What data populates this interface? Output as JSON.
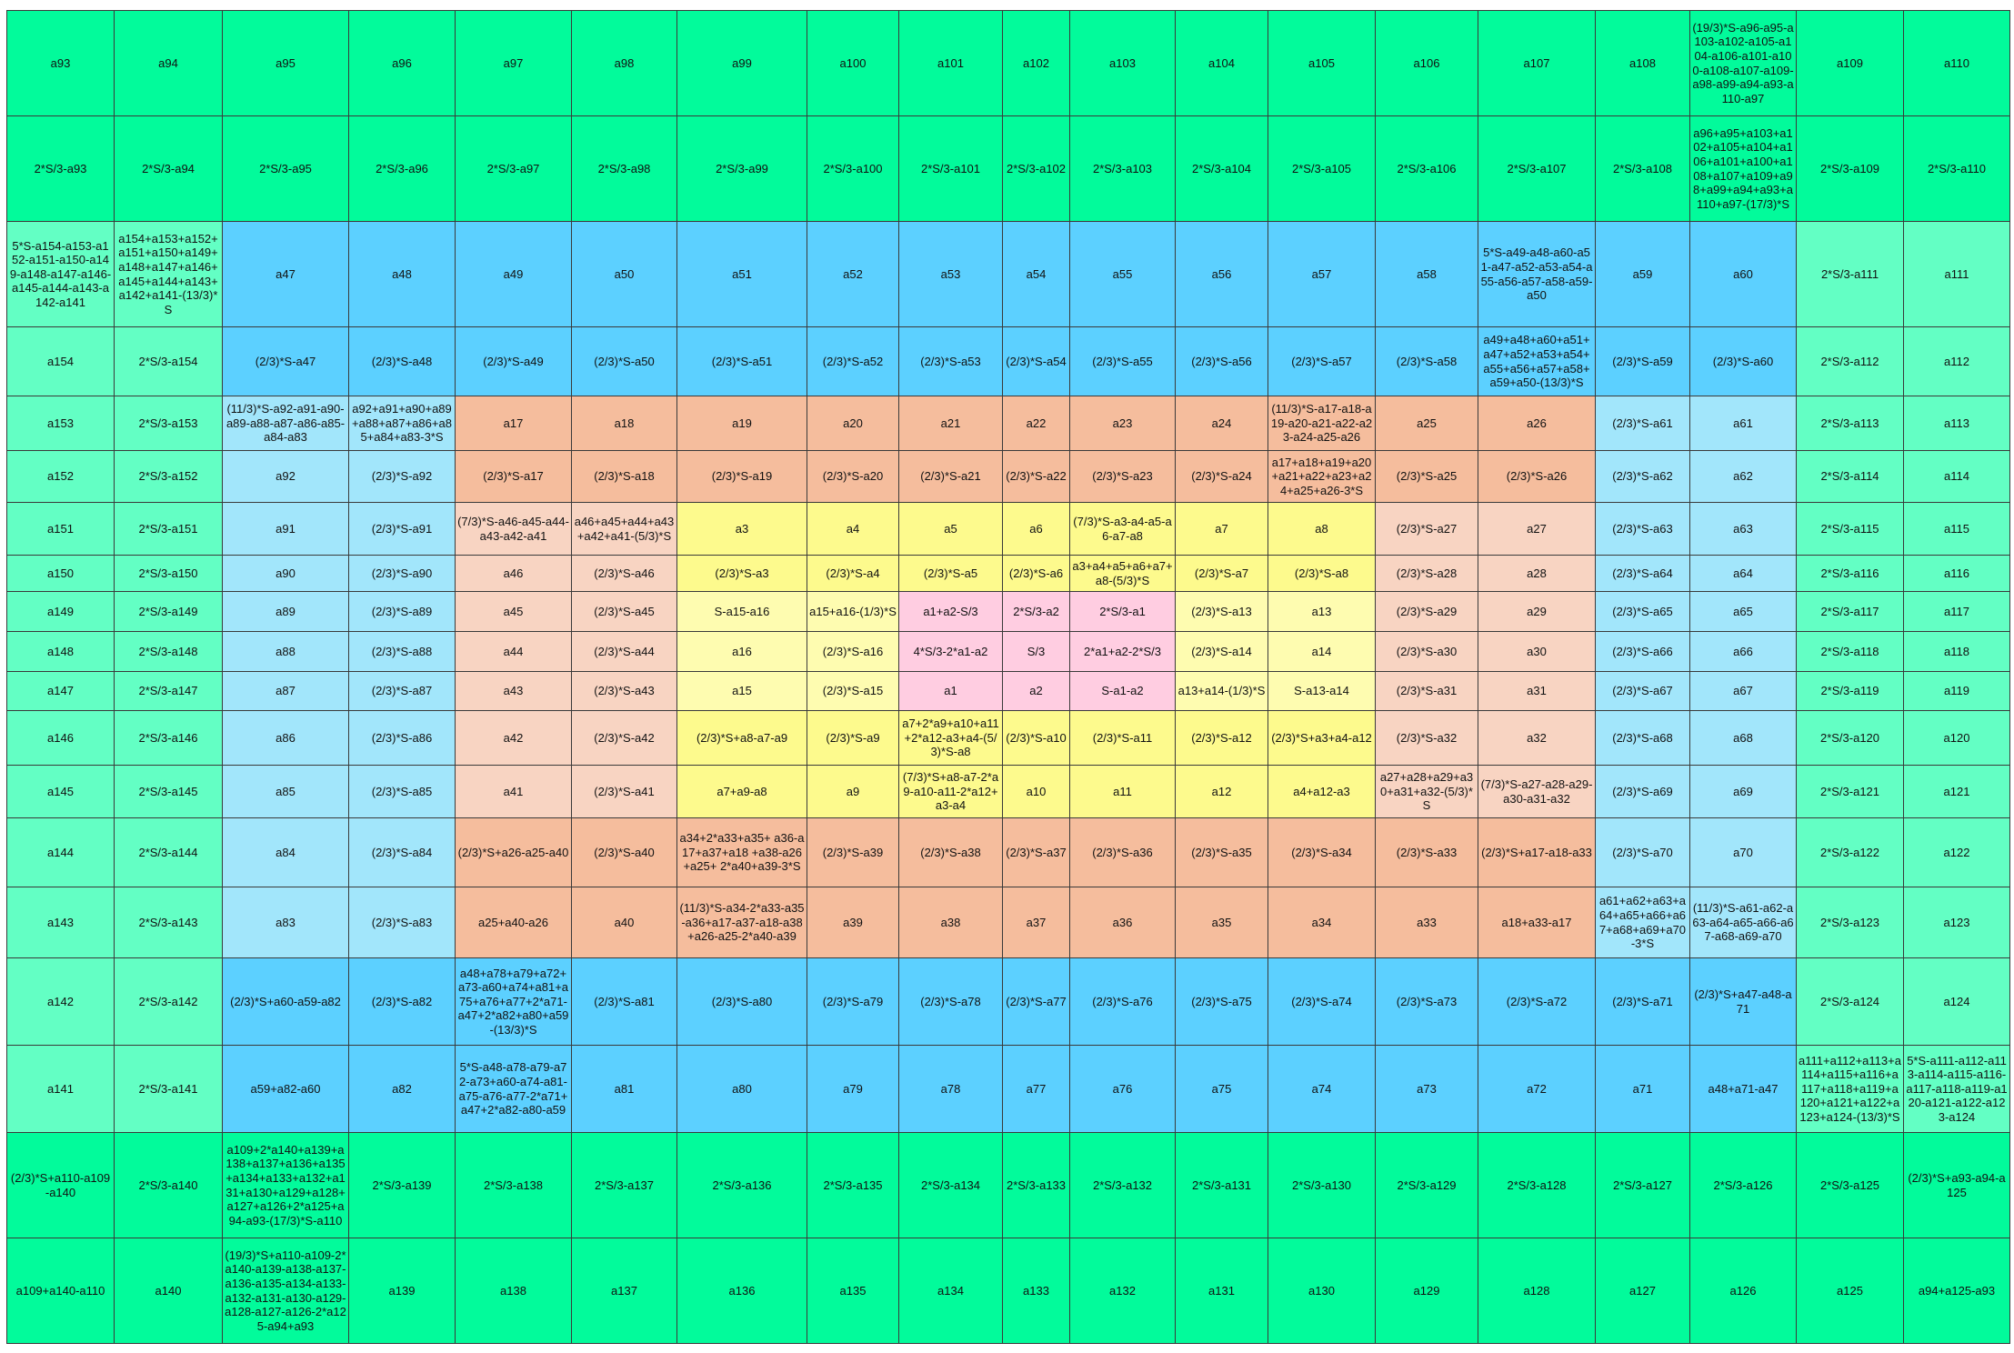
{
  "table": {
    "rows": [
      [
        "a93",
        "a94",
        "a95",
        "a96",
        "a97",
        "a98",
        "a99",
        "a100",
        "a101",
        "a102",
        "a103",
        "a104",
        "a105",
        "a106",
        "a107",
        "a108",
        "(19/3)*S-a96-a95-a103-a102-a105-a104-a106-a101-a100-a108-a107-a109-a98-a99-a94-a93-a110-a97",
        "a109",
        "a110"
      ],
      [
        "2*S/3-a93",
        "2*S/3-a94",
        "2*S/3-a95",
        "2*S/3-a96",
        "2*S/3-a97",
        "2*S/3-a98",
        "2*S/3-a99",
        "2*S/3-a100",
        "2*S/3-a101",
        "2*S/3-a102",
        "2*S/3-a103",
        "2*S/3-a104",
        "2*S/3-a105",
        "2*S/3-a106",
        "2*S/3-a107",
        "2*S/3-a108",
        "a96+a95+a103+a102+a105+a104+a106+a101+a100+a108+a107+a109+a98+a99+a94+a93+a110+a97-(17/3)*S",
        "2*S/3-a109",
        "2*S/3-a110"
      ],
      [
        "5*S-a154-a153-a152-a151-a150-a149-a148-a147-a146-a145-a144-a143-a142-a141",
        "a154+a153+a152+a151+a150+a149+a148+a147+a146+a145+a144+a143+a142+a141-(13/3)*S",
        "a47",
        "a48",
        "a49",
        "a50",
        "a51",
        "a52",
        "a53",
        "a54",
        "a55",
        "a56",
        "a57",
        "a58",
        "5*S-a49-a48-a60-a51-a47-a52-a53-a54-a55-a56-a57-a58-a59-a50",
        "a59",
        "a60",
        "2*S/3-a111",
        "a111"
      ],
      [
        "a154",
        "2*S/3-a154",
        "(2/3)*S-a47",
        "(2/3)*S-a48",
        "(2/3)*S-a49",
        "(2/3)*S-a50",
        "(2/3)*S-a51",
        "(2/3)*S-a52",
        "(2/3)*S-a53",
        "(2/3)*S-a54",
        "(2/3)*S-a55",
        "(2/3)*S-a56",
        "(2/3)*S-a57",
        "(2/3)*S-a58",
        "a49+a48+a60+a51+a47+a52+a53+a54+a55+a56+a57+a58+a59+a50-(13/3)*S",
        "(2/3)*S-a59",
        "(2/3)*S-a60",
        "2*S/3-a112",
        "a112"
      ],
      [
        "a153",
        "2*S/3-a153",
        "(11/3)*S-a92-a91-a90-a89-a88-a87-a86-a85-a84-a83",
        "a92+a91+a90+a89+a88+a87+a86+a85+a84+a83-3*S",
        "a17",
        "a18",
        "a19",
        "a20",
        "a21",
        "a22",
        "a23",
        "a24",
        "(11/3)*S-a17-a18-a19-a20-a21-a22-a23-a24-a25-a26",
        "a25",
        "a26",
        "(2/3)*S-a61",
        "a61",
        "2*S/3-a113",
        "a113"
      ],
      [
        "a152",
        "2*S/3-a152",
        "a92",
        "(2/3)*S-a92",
        "(2/3)*S-a17",
        "(2/3)*S-a18",
        "(2/3)*S-a19",
        "(2/3)*S-a20",
        "(2/3)*S-a21",
        "(2/3)*S-a22",
        "(2/3)*S-a23",
        "(2/3)*S-a24",
        "a17+a18+a19+a20+a21+a22+a23+a24+a25+a26-3*S",
        "(2/3)*S-a25",
        "(2/3)*S-a26",
        "(2/3)*S-a62",
        "a62",
        "2*S/3-a114",
        "a114"
      ],
      [
        "a151",
        "2*S/3-a151",
        "a91",
        "(2/3)*S-a91",
        "(7/3)*S-a46-a45-a44-a43-a42-a41",
        "a46+a45+a44+a43+a42+a41-(5/3)*S",
        "a3",
        "a4",
        "a5",
        "a6",
        "(7/3)*S-a3-a4-a5-a6-a7-a8",
        "a7",
        "a8",
        "(2/3)*S-a27",
        "a27",
        "(2/3)*S-a63",
        "a63",
        "2*S/3-a115",
        "a115"
      ],
      [
        "a150",
        "2*S/3-a150",
        "a90",
        "(2/3)*S-a90",
        "a46",
        "(2/3)*S-a46",
        "(2/3)*S-a3",
        "(2/3)*S-a4",
        "(2/3)*S-a5",
        "(2/3)*S-a6",
        "a3+a4+a5+a6+a7+a8-(5/3)*S",
        "(2/3)*S-a7",
        "(2/3)*S-a8",
        "(2/3)*S-a28",
        "a28",
        "(2/3)*S-a64",
        "a64",
        "2*S/3-a116",
        "a116"
      ],
      [
        "a149",
        "2*S/3-a149",
        "a89",
        "(2/3)*S-a89",
        "a45",
        "(2/3)*S-a45",
        "S-a15-a16",
        "a15+a16-(1/3)*S",
        "a1+a2-S/3",
        "2*S/3-a2",
        "2*S/3-a1",
        "(2/3)*S-a13",
        "a13",
        "(2/3)*S-a29",
        "a29",
        "(2/3)*S-a65",
        "a65",
        "2*S/3-a117",
        "a117"
      ],
      [
        "a148",
        "2*S/3-a148",
        "a88",
        "(2/3)*S-a88",
        "a44",
        "(2/3)*S-a44",
        "a16",
        "(2/3)*S-a16",
        "4*S/3-2*a1-a2",
        "S/3",
        "2*a1+a2-2*S/3",
        "(2/3)*S-a14",
        "a14",
        "(2/3)*S-a30",
        "a30",
        "(2/3)*S-a66",
        "a66",
        "2*S/3-a118",
        "a118"
      ],
      [
        "a147",
        "2*S/3-a147",
        "a87",
        "(2/3)*S-a87",
        "a43",
        "(2/3)*S-a43",
        "a15",
        "(2/3)*S-a15",
        "a1",
        "a2",
        "S-a1-a2",
        "a13+a14-(1/3)*S",
        "S-a13-a14",
        "(2/3)*S-a31",
        "a31",
        "(2/3)*S-a67",
        "a67",
        "2*S/3-a119",
        "a119"
      ],
      [
        "a146",
        "2*S/3-a146",
        "a86",
        "(2/3)*S-a86",
        "a42",
        "(2/3)*S-a42",
        "(2/3)*S+a8-a7-a9",
        "(2/3)*S-a9",
        "a7+2*a9+a10+a11+2*a12-a3+a4-(5/3)*S-a8",
        "(2/3)*S-a10",
        "(2/3)*S-a11",
        "(2/3)*S-a12",
        "(2/3)*S+a3+a4-a12",
        "(2/3)*S-a32",
        "a32",
        "(2/3)*S-a68",
        "a68",
        "2*S/3-a120",
        "a120"
      ],
      [
        "a145",
        "2*S/3-a145",
        "a85",
        "(2/3)*S-a85",
        "a41",
        "(2/3)*S-a41",
        "a7+a9-a8",
        "a9",
        "(7/3)*S+a8-a7-2*a9-a10-a11-2*a12+a3-a4",
        "a10",
        "a11",
        "a12",
        "a4+a12-a3",
        "a27+a28+a29+a30+a31+a32-(5/3)*S",
        "(7/3)*S-a27-a28-a29-a30-a31-a32",
        "(2/3)*S-a69",
        "a69",
        "2*S/3-a121",
        "a121"
      ],
      [
        "a144",
        "2*S/3-a144",
        "a84",
        "(2/3)*S-a84",
        "(2/3)*S+a26-a25-a40",
        "(2/3)*S-a40",
        "a34+2*a33+a35+ a36-a17+a37+a18 +a38-a26+a25+ 2*a40+a39-3*S",
        "(2/3)*S-a39",
        "(2/3)*S-a38",
        "(2/3)*S-a37",
        "(2/3)*S-a36",
        "(2/3)*S-a35",
        "(2/3)*S-a34",
        "(2/3)*S-a33",
        "(2/3)*S+a17-a18-a33",
        "(2/3)*S-a70",
        "a70",
        "2*S/3-a122",
        "a122"
      ],
      [
        "a143",
        "2*S/3-a143",
        "a83",
        "(2/3)*S-a83",
        "a25+a40-a26",
        "a40",
        "(11/3)*S-a34-2*a33-a35-a36+a17-a37-a18-a38+a26-a25-2*a40-a39",
        "a39",
        "a38",
        "a37",
        "a36",
        "a35",
        "a34",
        "a33",
        "a18+a33-a17",
        "a61+a62+a63+a64+a65+a66+a67+a68+a69+a70-3*S",
        "(11/3)*S-a61-a62-a63-a64-a65-a66-a67-a68-a69-a70",
        "2*S/3-a123",
        "a123"
      ],
      [
        "a142",
        "2*S/3-a142",
        "(2/3)*S+a60-a59-a82",
        "(2/3)*S-a82",
        "a48+a78+a79+a72+a73-a60+a74+a81+a75+a76+a77+2*a71-a47+2*a82+a80+a59-(13/3)*S",
        "(2/3)*S-a81",
        "(2/3)*S-a80",
        "(2/3)*S-a79",
        "(2/3)*S-a78",
        "(2/3)*S-a77",
        "(2/3)*S-a76",
        "(2/3)*S-a75",
        "(2/3)*S-a74",
        "(2/3)*S-a73",
        "(2/3)*S-a72",
        "(2/3)*S-a71",
        "(2/3)*S+a47-a48-a71",
        "2*S/3-a124",
        "a124"
      ],
      [
        "a141",
        "2*S/3-a141",
        "a59+a82-a60",
        "a82",
        "5*S-a48-a78-a79-a72-a73+a60-a74-a81-a75-a76-a77-2*a71+a47+2*a82-a80-a59",
        "a81",
        "a80",
        "a79",
        "a78",
        "a77",
        "a76",
        "a75",
        "a74",
        "a73",
        "a72",
        "a71",
        "a48+a71-a47",
        "a111+a112+a113+a114+a115+a116+a117+a118+a119+a120+a121+a122+a123+a124-(13/3)*S",
        "5*S-a111-a112-a113-a114-a115-a116-a117-a118-a119-a120-a121-a122-a123-a124"
      ],
      [
        "(2/3)*S+a110-a109-a140",
        "2*S/3-a140",
        "a109+2*a140+a139+a138+a137+a136+a135+a134+a133+a132+a131+a130+a129+a128+a127+a126+2*a125+a94-a93-(17/3)*S-a110",
        "2*S/3-a139",
        "2*S/3-a138",
        "2*S/3-a137",
        "2*S/3-a136",
        "2*S/3-a135",
        "2*S/3-a134",
        "2*S/3-a133",
        "2*S/3-a132",
        "2*S/3-a131",
        "2*S/3-a130",
        "2*S/3-a129",
        "2*S/3-a128",
        "2*S/3-a127",
        "2*S/3-a126",
        "2*S/3-a125",
        "(2/3)*S+a93-a94-a125"
      ],
      [
        "a109+a140-a110",
        "a140",
        "(19/3)*S+a110-a109-2*a140-a139-a138-a137-a136-a135-a134-a133-a132-a131-a130-a129-a128-a127-a126-2*a125-a94+a93",
        "a139",
        "a138",
        "a137",
        "a136",
        "a135",
        "a134",
        "a133",
        "a132",
        "a131",
        "a130",
        "a129",
        "a128",
        "a127",
        "a126",
        "a125",
        "a94+a125-a93"
      ]
    ]
  }
}
